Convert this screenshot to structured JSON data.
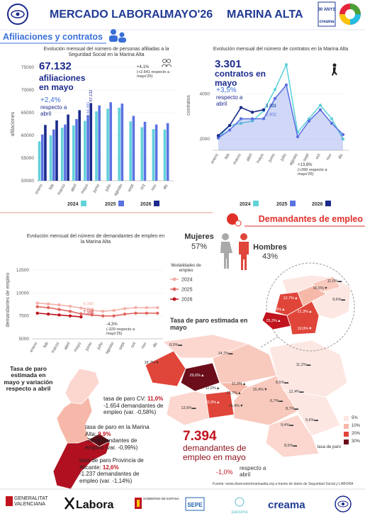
{
  "header": {
    "title": "MERCADO LABORAL",
    "month": "MAYO'26",
    "region": "MARINA ALTA",
    "badge": "30 ANYS",
    "badge_brand": "creama"
  },
  "sections": [
    "Afiliaciones y contratos",
    "Demandantes de empleo"
  ],
  "chart_data": [
    {
      "type": "bar",
      "title": "Evolución mensual del número de personas afiliadas a la Seguridad Social en la Marina Alta",
      "y_label": "afiliaciones",
      "categories": [
        "enero",
        "feb",
        "marzo",
        "abril",
        "mayo",
        "junio",
        "julio",
        "agosto",
        "sept",
        "oct",
        "nov",
        "dic"
      ],
      "series": [
        {
          "name": "2024",
          "color": "#62d2d9",
          "values": [
            58700,
            60000,
            61700,
            62200,
            63200,
            65300,
            65900,
            66100,
            63100,
            61800,
            61400,
            61300
          ]
        },
        {
          "name": "2025",
          "color": "#5b72e2",
          "values": [
            60200,
            61300,
            62400,
            63600,
            64491,
            66600,
            67300,
            67000,
            64300,
            63000,
            62400,
            62700
          ],
          "value_labels": [
            null,
            null,
            null,
            null,
            "64.491",
            null,
            null,
            null,
            null,
            null,
            null,
            null
          ]
        },
        {
          "name": "2026",
          "color": "#1b2a8c",
          "values": [
            62300,
            63300,
            64600,
            65559,
            67132,
            null,
            null,
            null,
            null,
            null,
            null,
            null
          ],
          "value_labels": [
            null,
            null,
            null,
            null,
            "67.132",
            null,
            null,
            null,
            null,
            null,
            null,
            null
          ]
        }
      ],
      "ylim": [
        50000,
        75000
      ],
      "yticks": [
        50000,
        55000,
        60000,
        65000,
        70000,
        75000
      ],
      "grid": true,
      "annotations": [
        "67.132",
        "afiliaciones en mayo",
        "+2,4%",
        "respecto a abril",
        "+4,1%",
        "(+2.641 respecto a mayo'25)"
      ]
    },
    {
      "type": "line",
      "title": "Evolución mensual del número de contratos en la Marina Alta",
      "y_label": "contratos",
      "categories": [
        "enero",
        "feb",
        "marzo",
        "abril",
        "mayo",
        "junio",
        "julio",
        "agosto",
        "sept",
        "oct",
        "nov",
        "dic"
      ],
      "series": [
        {
          "name": "2024",
          "color": "#62d2d9",
          "values": [
            2050,
            2600,
            2700,
            2800,
            3257,
            4200,
            5300,
            2300,
            2900,
            3500,
            2900,
            2000
          ],
          "value_labels": [
            null,
            null,
            null,
            null,
            "3.257",
            null,
            null,
            null,
            null,
            null,
            null,
            null
          ]
        },
        {
          "name": "2025",
          "color": "#5b72e2",
          "area": true,
          "values": [
            2050,
            2400,
            2900,
            2900,
            2902,
            3800,
            4400,
            2100,
            2800,
            3300,
            2700,
            2200
          ],
          "value_labels": [
            null,
            null,
            null,
            null,
            "2.902",
            null,
            null,
            null,
            null,
            null,
            null,
            null
          ]
        },
        {
          "name": "2026",
          "color": "#1b2a8c",
          "values": [
            2150,
            2600,
            3400,
            3190,
            3301,
            null,
            null,
            null,
            null,
            null,
            null,
            null
          ],
          "value_labels": [
            null,
            null,
            null,
            null,
            "3.301",
            null,
            null,
            null,
            null,
            null,
            null,
            null
          ]
        }
      ],
      "ylim": [
        1500,
        5500
      ],
      "yticks": [
        2000,
        4000
      ],
      "grid": true,
      "annotations": [
        "3.301",
        "contratos en mayo",
        "+3,5%",
        "respecto a abril",
        "+13,8%",
        "(+399 respecto a mayo'25)"
      ]
    },
    {
      "type": "line",
      "title": "Evolución mensual del número de demandantes de empleo en la Marina Alta",
      "y_label": "demandantes de empleo",
      "legend_title": "Modalidades de empleo",
      "categories": [
        "enero",
        "feb",
        "marzo",
        "abril",
        "mayo",
        "junio",
        "julio",
        "agosto",
        "sept",
        "oct",
        "nov",
        "dic"
      ],
      "series": [
        {
          "name": "2024",
          "color": "#f2b0a8",
          "values": [
            8900,
            8800,
            8700,
            8550,
            8360,
            8100,
            8000,
            8100,
            8300,
            8400,
            8400,
            8400
          ],
          "value_labels": [
            null,
            null,
            null,
            null,
            "8.360",
            null,
            null,
            null,
            null,
            null,
            null,
            null
          ]
        },
        {
          "name": "2025",
          "color": "#e0665f",
          "values": [
            8500,
            8400,
            8200,
            8000,
            7723,
            7600,
            7500,
            7500,
            7700,
            7800,
            7800,
            7800
          ],
          "value_labels": [
            null,
            null,
            null,
            null,
            "7.723",
            null,
            null,
            null,
            null,
            null,
            null,
            null
          ]
        },
        {
          "name": "2026",
          "color": "#c0141e",
          "values": [
            7800,
            7700,
            7600,
            7500,
            7394,
            null,
            null,
            null,
            null,
            null,
            null,
            null
          ],
          "value_labels": [
            null,
            null,
            null,
            null,
            "7.394",
            null,
            null,
            null,
            null,
            null,
            null,
            null
          ]
        }
      ],
      "ylim": [
        5000,
        13500
      ],
      "yticks": [
        5000,
        7500,
        10000,
        12500
      ],
      "grid": true,
      "annotations": [
        "-4,3%",
        "(-329 respecto a mayo'25)"
      ]
    }
  ],
  "gender": {
    "women": "Mujeres",
    "women_share": "57%",
    "men": "Hombres",
    "men_share": "43%"
  },
  "map": {
    "title": "Tasa de paro estimada en mayo",
    "legend_title": "tasa de paro",
    "legend": [
      "5%",
      "10%",
      "20%",
      "30%"
    ],
    "labels": [
      "8,9%▬",
      "14,7%▬",
      "18,7%▼",
      "29,6%▲",
      "11,2%▬",
      "11,3%▲",
      "11,5%▲",
      "13,7%▲",
      "8,5%▬",
      "12,4%▬",
      "15,4%▼",
      "20,9%▲",
      "15,4%▼",
      "6,7%▬",
      "8,7%▬",
      "12,6%▬",
      "9,4%▬",
      "5,6%▬",
      "8,5%▬",
      "12,7%▲",
      "16,5%▼",
      "11,0%▬",
      "24,3%▲",
      "21,3%▲",
      "9,6%▬",
      "25,2%▲",
      "19,9%▼"
    ]
  },
  "regions": {
    "title": "Tasa de paro estimada en mayo y variación respecto a abril",
    "items": [
      {
        "label": "tasa de paro CV:",
        "rate": "11,0%",
        "change": "-1.654 demandantes de empleo (var. -0,58%)"
      },
      {
        "label": "tasa de paro en la Marina Alta:",
        "rate": "9,9%",
        "change": "-74 demandantes de empleo (var. -0,99%)"
      },
      {
        "label": "tasa de paro Provincia de Alicante:",
        "rate": "12,6%",
        "change": "-1.237 demandantes de empleo (var. -1,14%)"
      }
    ]
  },
  "summary": {
    "value": "7.394",
    "label": "demandantes de empleo en mayo",
    "change": "-1,0%",
    "change_label": "respecto a abril"
  },
  "footer": {
    "source": "Fuente: www.observatorimarinaalta.org a través de datos de Seguridad Social y LABORA",
    "logos": [
      "GENERALITAT VALENCIANA",
      "Labora",
      "GOBIERNO DE ESPAÑA",
      "SEPE",
      "pactoma",
      "creama"
    ]
  }
}
